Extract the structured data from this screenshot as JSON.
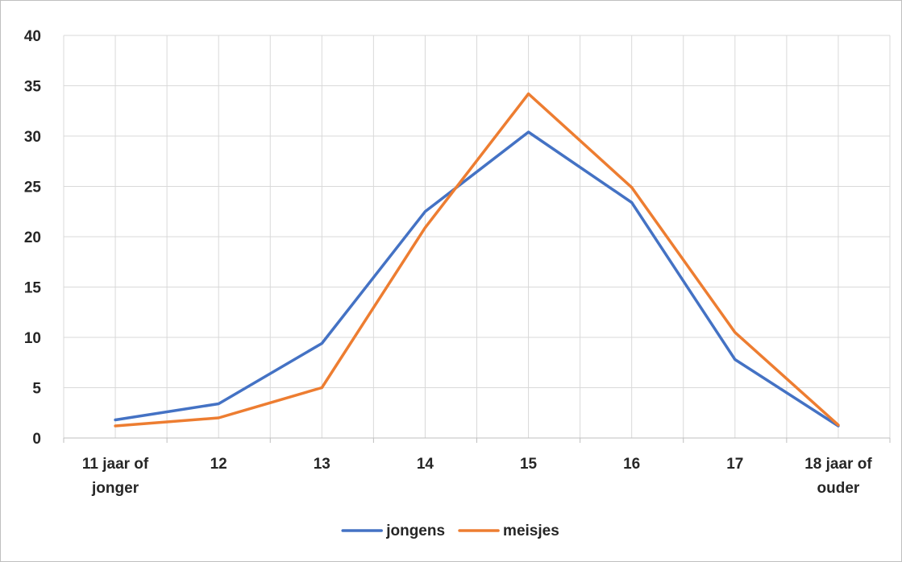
{
  "chart_data": {
    "type": "line",
    "title": "",
    "xlabel": "",
    "ylabel": "",
    "categories": [
      [
        "11 jaar of",
        "jonger"
      ],
      [
        "12"
      ],
      [
        "13"
      ],
      [
        "14"
      ],
      [
        "15"
      ],
      [
        "16"
      ],
      [
        "17"
      ],
      [
        "18 jaar of",
        "ouder"
      ]
    ],
    "ylim": [
      0,
      40
    ],
    "yticks": [
      "0",
      "5",
      "10",
      "15",
      "20",
      "25",
      "30",
      "35",
      "40"
    ],
    "grid": true,
    "legend_position": "bottom",
    "series": [
      {
        "name": "jongens",
        "color": "#4472C4",
        "values": [
          1.8,
          3.4,
          9.4,
          22.5,
          30.4,
          23.4,
          7.8,
          1.2
        ]
      },
      {
        "name": "meisjes",
        "color": "#ED7D31",
        "values": [
          1.2,
          2.0,
          5.0,
          20.9,
          34.2,
          24.9,
          10.5,
          1.3
        ]
      }
    ]
  }
}
